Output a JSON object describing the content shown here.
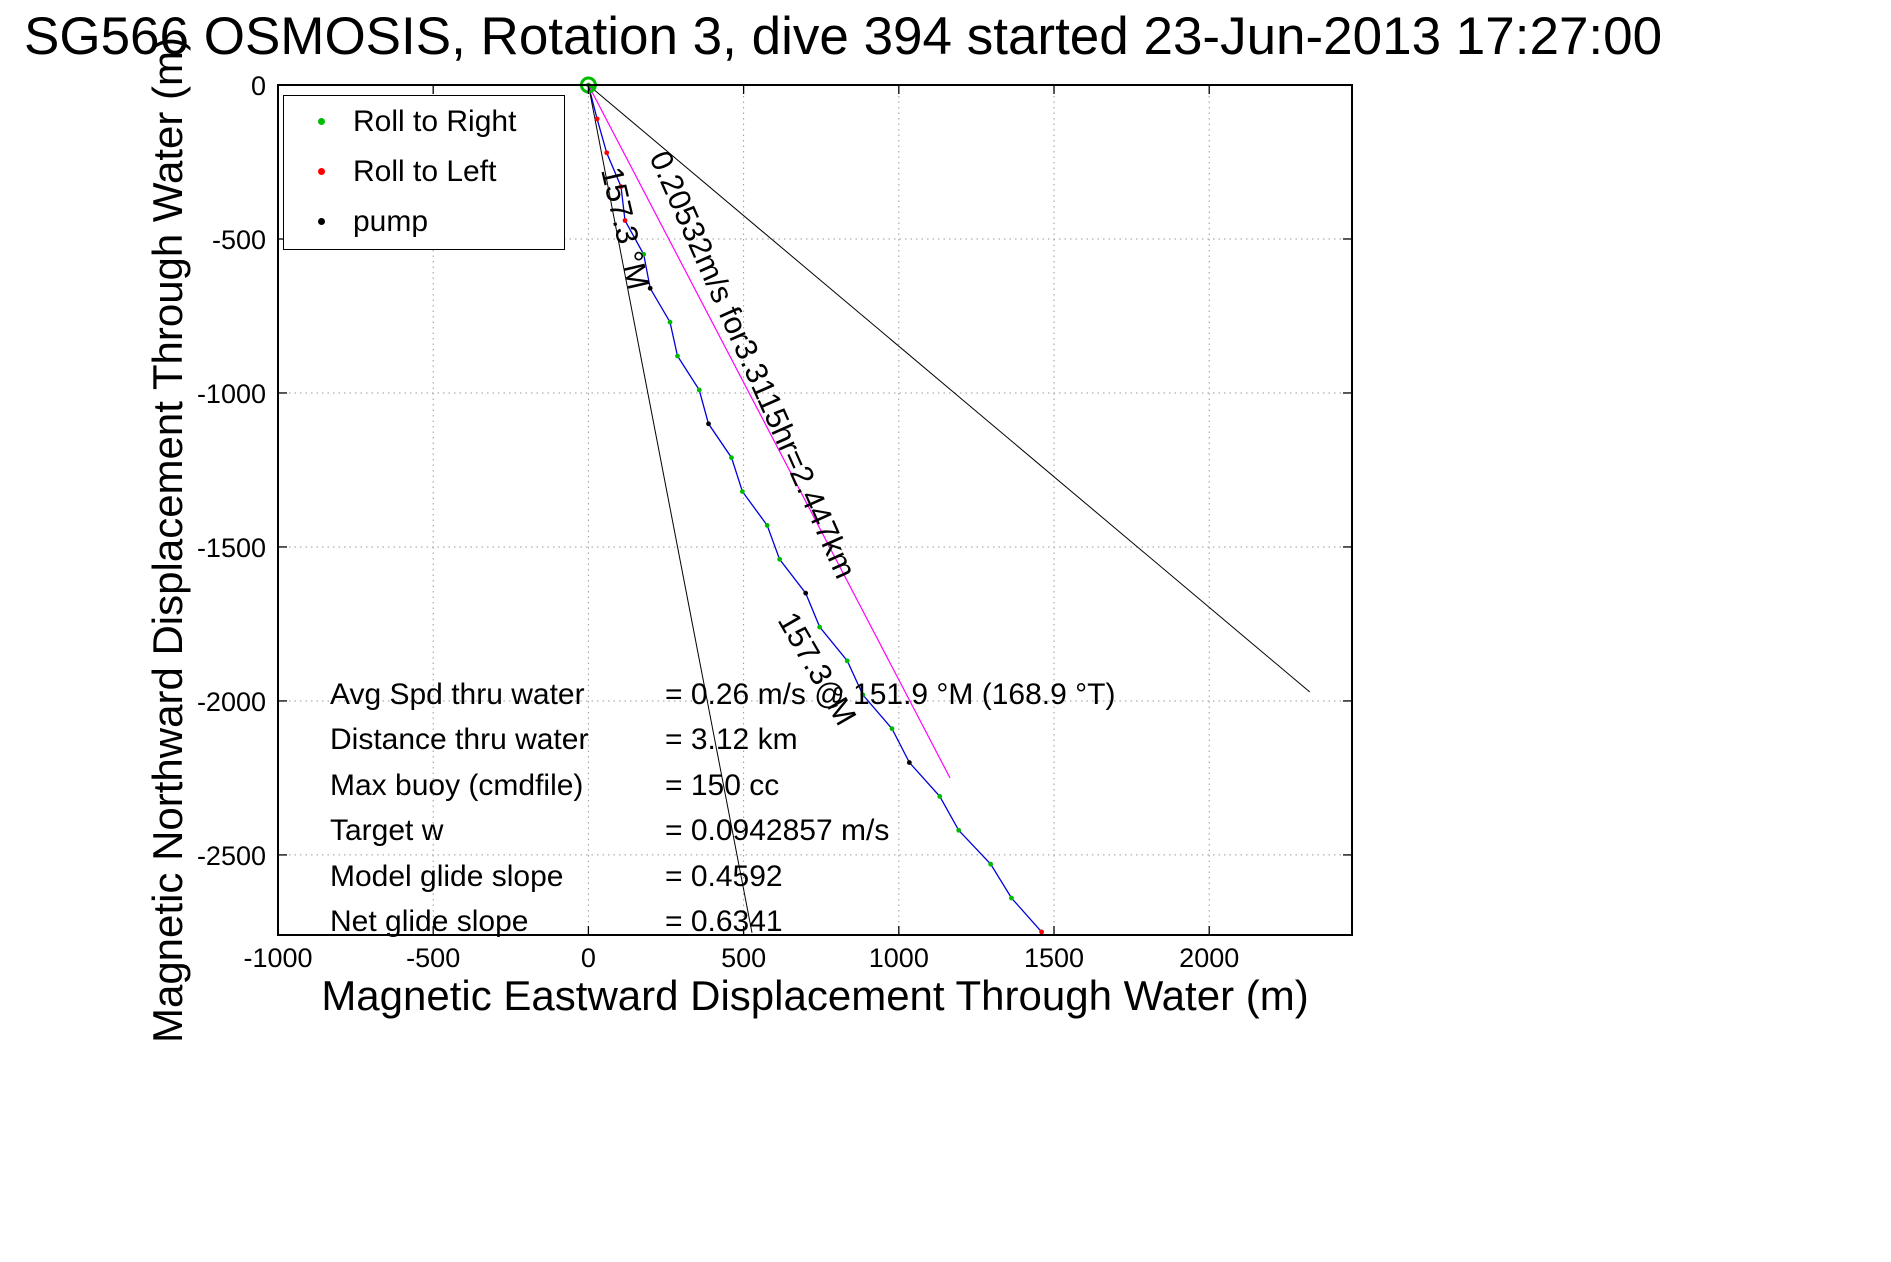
{
  "annotations": {
    "speed_line": "0.20532m/s for3.3115hr=2.447km",
    "bearing_upper": "157.3 °M",
    "bearing_lower": "157.3 °M"
  },
  "stats": {
    "rows": [
      {
        "label": "Avg Spd thru water",
        "value": "=  0.26 m/s @ 151.9 °M (168.9 °T)"
      },
      {
        "label": "Distance thru water",
        "value": "=  3.12 km"
      },
      {
        "label": "Max buoy (cmdfile)",
        "value": "= 150 cc"
      },
      {
        "label": "Target w",
        "value": "= 0.0942857 m/s"
      },
      {
        "label": "Model glide slope",
        "value": "= 0.4592"
      },
      {
        "label": "Net glide slope",
        "value": "= 0.6341"
      }
    ]
  },
  "chart_data": {
    "type": "line",
    "title": "SG566 OSMOSIS, Rotation 3, dive 394 started 23-Jun-2013 17:27:00",
    "xlabel": "Magnetic Eastward Displacement Through Water (m)",
    "ylabel": "Magnetic Northward Displacement Through Water (m)",
    "xlim": [
      -1000,
      2460
    ],
    "ylim": [
      -2760,
      0
    ],
    "x_ticks": [
      -1000,
      -500,
      0,
      500,
      1000,
      1500,
      2000
    ],
    "y_ticks": [
      0,
      -500,
      -1000,
      -1500,
      -2000,
      -2500
    ],
    "grid": "dotted",
    "legend": [
      "Roll to Right",
      "Roll to Left",
      "pump"
    ],
    "legend_colors": [
      "#00bb00",
      "#ff0000",
      "#000000"
    ],
    "series": [
      {
        "name": "track",
        "color": "#0000dd",
        "width": 1.3,
        "points": [
          [
            0,
            0
          ],
          [
            28,
            -110
          ],
          [
            59,
            -220
          ],
          [
            105,
            -330
          ],
          [
            118,
            -440
          ],
          [
            178,
            -550
          ],
          [
            199,
            -660
          ],
          [
            263,
            -770
          ],
          [
            287,
            -880
          ],
          [
            357,
            -990
          ],
          [
            387,
            -1100
          ],
          [
            461,
            -1210
          ],
          [
            496,
            -1320
          ],
          [
            576,
            -1430
          ],
          [
            616,
            -1540
          ],
          [
            700,
            -1650
          ],
          [
            745,
            -1760
          ],
          [
            834,
            -1870
          ],
          [
            884,
            -1980
          ],
          [
            978,
            -2090
          ],
          [
            1034,
            -2200
          ],
          [
            1132,
            -2310
          ],
          [
            1193,
            -2420
          ],
          [
            1296,
            -2530
          ],
          [
            1363,
            -2640
          ],
          [
            1460,
            -2750
          ]
        ]
      },
      {
        "name": "avg-displacement-vector",
        "color": "#ff00ff",
        "width": 1.2,
        "points": [
          [
            0,
            0
          ],
          [
            1165,
            -2250
          ]
        ]
      },
      {
        "name": "bearing-line-left",
        "color": "#000000",
        "width": 1,
        "points": [
          [
            0,
            0
          ],
          [
            527,
            -2753
          ]
        ]
      },
      {
        "name": "bearing-line-right",
        "color": "#000000",
        "width": 1,
        "points": [
          [
            0,
            0
          ],
          [
            2324,
            -1971
          ]
        ]
      }
    ],
    "marker_colors": [
      "g",
      "r",
      "r",
      "r",
      "r",
      "g",
      "k",
      "g",
      "g",
      "g",
      "k",
      "g",
      "g",
      "g",
      "g",
      "k",
      "g",
      "g",
      "g",
      "g",
      "k",
      "g",
      "g",
      "g",
      "g",
      "r"
    ]
  }
}
